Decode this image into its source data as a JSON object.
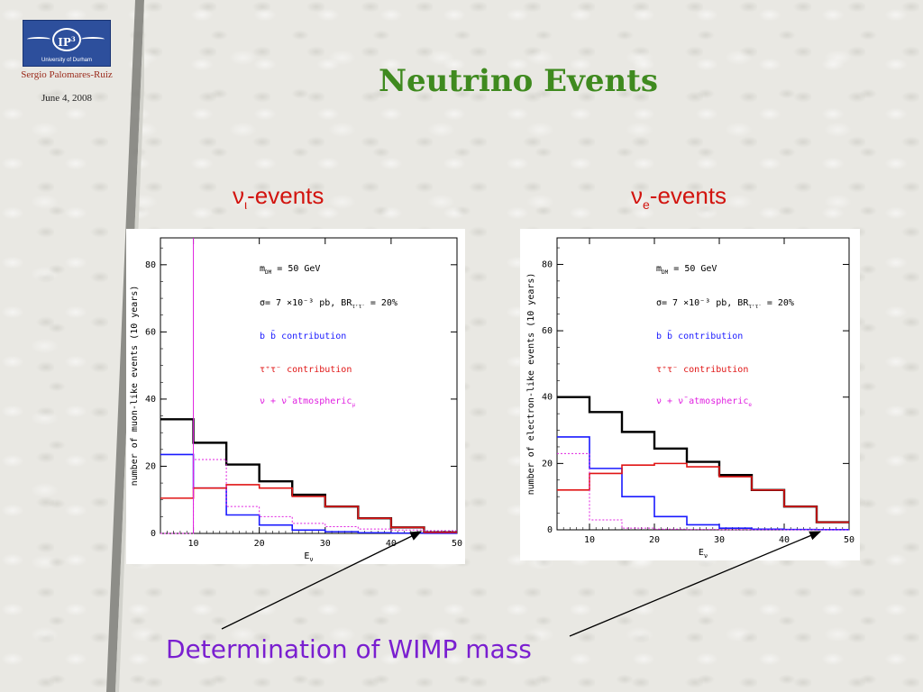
{
  "sidebar": {
    "logo_text": "IP",
    "logo_sup": "3",
    "logo_caption": "University of Durham",
    "author": "Sergio Palomares-Ruiz",
    "date": "June 4, 2008"
  },
  "slide": {
    "title": "Neutrino Events",
    "left_heading_sym": "ν",
    "left_heading_sub": "ι",
    "left_heading_text": "-events",
    "right_heading_sym": "ν",
    "right_heading_sub": "e",
    "right_heading_text": "-events",
    "caption": "Determination of WIMP mass"
  },
  "colors": {
    "total": "#000000",
    "bb": "#1a1aff",
    "tautau": "#e01515",
    "atm": "#e020e0",
    "title": "#3f8a1f",
    "heading": "#d2140f",
    "caption": "#7a1fd0"
  },
  "chart_data": [
    {
      "type": "histogram",
      "xlabel": "E",
      "xlabel_sub": "ν",
      "ylabel": "number of muon-like events (10 years)",
      "xlim": [
        5,
        50
      ],
      "ylim": [
        0,
        88
      ],
      "xticks": [
        10,
        20,
        30,
        40,
        50
      ],
      "yticks": [
        0,
        20,
        40,
        60,
        80
      ],
      "bin_edges": [
        5,
        10,
        15,
        20,
        25,
        30,
        35,
        40,
        45,
        50
      ],
      "legend": [
        "m",
        "σ= 7 ×10⁻³  pb, BR",
        "b b̄ contribution",
        "τ⁺τ⁻ contribution",
        "ν + ν̄ atmospheric"
      ],
      "legend_lines": {
        "mass": "m",
        "mass_sub": "DM",
        "mass_val": " = 50 GeV",
        "sigma": "σ= 7 ×10⁻³  pb, BR",
        "sigma_sub": "τ⁺τ⁻",
        "sigma_val": " = 20%",
        "bb": "b b̄ contribution",
        "tautau": "τ⁺τ⁻ contribution",
        "atm": "ν + ν̄ atmospheric",
        "atm_sub": "μ"
      },
      "series": [
        {
          "name": "total",
          "values": [
            34,
            27,
            20.5,
            15.5,
            11.5,
            8,
            4.5,
            1.8,
            0.3
          ]
        },
        {
          "name": "b b̄ contribution",
          "values": [
            23.5,
            13.5,
            5.5,
            2.5,
            1.0,
            0.5,
            0.2,
            0.1,
            0.05
          ]
        },
        {
          "name": "τ⁺τ⁻ contribution",
          "values": [
            10.5,
            13.5,
            14.5,
            13.5,
            11,
            8,
            4.5,
            1.8,
            0.3
          ]
        },
        {
          "name": "ν + ν̄ atmospheric",
          "values": [
            0,
            22,
            8,
            5,
            3,
            2,
            1.3,
            1.0,
            0.8
          ],
          "spike_at": 10
        }
      ]
    },
    {
      "type": "histogram",
      "xlabel": "E",
      "xlabel_sub": "ν",
      "ylabel": "number of electron-like events (10 years)",
      "xlim": [
        5,
        50
      ],
      "ylim": [
        0,
        88
      ],
      "xticks": [
        10,
        20,
        30,
        40,
        50
      ],
      "yticks": [
        0,
        20,
        40,
        60,
        80
      ],
      "bin_edges": [
        5,
        10,
        15,
        20,
        25,
        30,
        35,
        40,
        45,
        50
      ],
      "legend_lines": {
        "mass": "m",
        "mass_sub": "DM",
        "mass_val": " = 50 GeV",
        "sigma": "σ= 7 ×10⁻³  pb, BR",
        "sigma_sub": "τ⁺τ⁻",
        "sigma_val": " = 20%",
        "bb": "b b̄ contribution",
        "tautau": "τ⁺τ⁻ contribution",
        "atm": "ν + ν̄ atmospheric",
        "atm_sub": "e"
      },
      "series": [
        {
          "name": "total",
          "values": [
            40,
            35.5,
            29.5,
            24.5,
            20.5,
            16.5,
            12,
            7,
            2.3
          ]
        },
        {
          "name": "b b̄ contribution",
          "values": [
            28,
            18.5,
            10,
            4,
            1.5,
            0.5,
            0.2,
            0.1,
            0.05
          ]
        },
        {
          "name": "τ⁺τ⁻ contribution",
          "values": [
            12,
            17,
            19.5,
            20,
            19,
            16,
            12,
            7,
            2.3
          ]
        },
        {
          "name": "ν + ν̄ atmospheric",
          "values": [
            23,
            3,
            0.5,
            0.2,
            0.1,
            0.05,
            0.02,
            0.01,
            0.01
          ]
        }
      ]
    }
  ]
}
